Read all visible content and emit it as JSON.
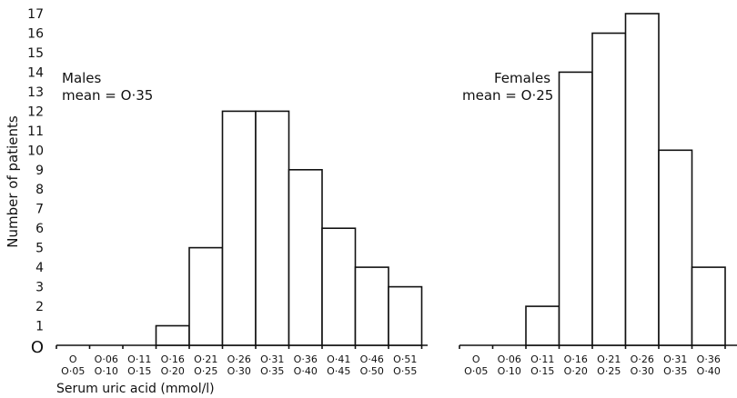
{
  "chart_data": {
    "type": "bar",
    "ylabel": "Number of patients",
    "xlabel": "Serum uric acid (mmol/l)",
    "y_ticks": [
      "O",
      "1",
      "2",
      "3",
      "4",
      "5",
      "6",
      "7",
      "8",
      "9",
      "10",
      "11",
      "12",
      "13",
      "14",
      "15",
      "16",
      "17"
    ],
    "ylim": [
      0,
      17
    ],
    "panels": [
      {
        "label": "Males",
        "mean_label": "mean = O·35",
        "categories": [
          [
            "O",
            "O·05"
          ],
          [
            "O·06",
            "O·10"
          ],
          [
            "O·11",
            "O·15"
          ],
          [
            "O·16",
            "O·20"
          ],
          [
            "O·21",
            "O·25"
          ],
          [
            "O·26",
            "O·30"
          ],
          [
            "O·31",
            "O·35"
          ],
          [
            "O·36",
            "O·40"
          ],
          [
            "O·41",
            "O·45"
          ],
          [
            "O·46",
            "O·50"
          ],
          [
            "O·51",
            "O·55"
          ]
        ],
        "values": [
          0,
          0,
          0,
          1,
          5,
          12,
          12,
          9,
          6,
          4,
          3
        ]
      },
      {
        "label": "Females",
        "mean_label": "mean = O·25",
        "categories": [
          [
            "O",
            "O·05"
          ],
          [
            "O·06",
            "O·10"
          ],
          [
            "O·11",
            "O·15"
          ],
          [
            "O·16",
            "O·20"
          ],
          [
            "O·21",
            "O·25"
          ],
          [
            "O·26",
            "O·30"
          ],
          [
            "O·31",
            "O·35"
          ],
          [
            "O·36",
            "O·40"
          ]
        ],
        "values": [
          0,
          0,
          2,
          14,
          16,
          17,
          10,
          4
        ]
      }
    ]
  }
}
